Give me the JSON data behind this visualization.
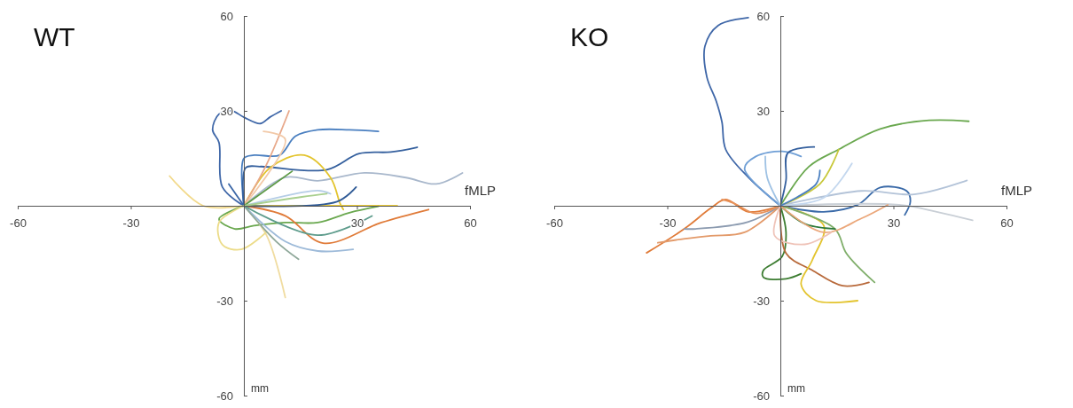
{
  "chart_data": [
    {
      "type": "line",
      "title": "WT",
      "xlabel": "fMLP",
      "annotations": [
        "mm"
      ],
      "xlim": [
        -60,
        60
      ],
      "ylim": [
        -60,
        60
      ],
      "xticks": [
        -60,
        -30,
        30,
        60
      ],
      "yticks": [
        -60,
        -30,
        30,
        60
      ],
      "series": [
        {
          "color": "#3f67a8",
          "x": [
            0,
            -5.7,
            -6.6,
            -8.3,
            -6.6,
            -3.2,
            0,
            4.4,
            6.9,
            9.9
          ],
          "values": [
            0,
            5.9,
            20,
            24,
            29,
            30,
            28,
            26,
            28,
            30
          ]
        },
        {
          "color": "#4a7fc0",
          "x": [
            0,
            0,
            2.7,
            9.5,
            13.7,
            19.6,
            28,
            35.7
          ],
          "values": [
            0,
            15,
            16,
            16,
            22,
            24,
            24,
            23.5
          ]
        },
        {
          "color": "#35609e",
          "x": [
            0,
            0.5,
            4.4,
            22,
            30.6,
            39,
            46
          ],
          "values": [
            0,
            12,
            12.4,
            11.4,
            16.5,
            17,
            18.5
          ]
        },
        {
          "color": "#a9b8cc",
          "x": [
            0,
            11,
            19.6,
            32,
            43,
            51,
            58
          ],
          "values": [
            0,
            9,
            7.9,
            10.4,
            8.9,
            6.9,
            10.4
          ]
        },
        {
          "color": "#e3c42e",
          "x": [
            0,
            6.9,
            16,
            23,
            25.5,
            26.4
          ],
          "values": [
            0,
            12,
            16,
            8.9,
            0.8,
            -1.2
          ]
        },
        {
          "color": "#f0cf3a",
          "x": [
            0,
            19.6,
            40.7
          ],
          "values": [
            0,
            0,
            0
          ]
        },
        {
          "color": "#e8a88a",
          "x": [
            0,
            6,
            12
          ],
          "values": [
            0,
            13,
            30
          ]
        },
        {
          "color": "#f2c9a8",
          "x": [
            0,
            11,
            5.2
          ],
          "values": [
            0,
            21,
            23.5
          ]
        },
        {
          "color": "#f2d98a",
          "x": [
            0,
            -10.8,
            -19.7
          ],
          "values": [
            0,
            0,
            9.4
          ]
        },
        {
          "color": "#6aa84f",
          "x": [
            0,
            -6.6,
            -2.4,
            2.7,
            11,
            19.6,
            28,
            35.7
          ],
          "values": [
            0,
            -4.2,
            -7.3,
            -6.3,
            -5.3,
            -5.3,
            -2.2,
            -0.2
          ]
        },
        {
          "color": "#e07b39",
          "x": [
            0,
            11,
            21,
            36.5,
            49
          ],
          "values": [
            0,
            -3.2,
            -11.8,
            -5.3,
            -1.2
          ]
        },
        {
          "color": "#f0dca0",
          "x": [
            0,
            6,
            11
          ],
          "values": [
            0,
            -9.3,
            -29
          ]
        },
        {
          "color": "#ecdc8a",
          "x": [
            0,
            -6.6,
            -5.7,
            -0.7,
            6
          ],
          "values": [
            0,
            -5.3,
            -12.3,
            -13.8,
            -8.3
          ]
        },
        {
          "color": "#9dbad9",
          "x": [
            0,
            11,
            19.6,
            29
          ],
          "values": [
            0,
            -11.3,
            -14.3,
            -13.8
          ]
        },
        {
          "color": "#8fa89a",
          "x": [
            0,
            8.6,
            14.5
          ],
          "values": [
            0,
            -11.3,
            -16.9
          ]
        },
        {
          "color": "#2f5a96",
          "x": [
            0,
            24.7,
            29.8
          ],
          "values": [
            0,
            1.3,
            5.9
          ]
        },
        {
          "color": "#b5cde6",
          "x": [
            0,
            19.6,
            23
          ],
          "values": [
            0,
            4.8,
            3.8
          ]
        },
        {
          "color": "#5e9c8c",
          "x": [
            0,
            19.6,
            34
          ],
          "values": [
            0,
            -9.3,
            -3.2
          ]
        },
        {
          "color": "#3a66a6",
          "x": [
            0,
            -4
          ],
          "values": [
            0,
            6.9
          ]
        },
        {
          "color": "#5d9a45",
          "x": [
            0,
            12.8
          ],
          "values": [
            0,
            10.9
          ]
        },
        {
          "color": "#a8cf8e",
          "x": [
            0,
            15.4,
            22
          ],
          "values": [
            0,
            2.8,
            3.8
          ]
        }
      ]
    },
    {
      "type": "line",
      "title": "KO",
      "xlabel": "fMLP",
      "annotations": [
        "mm"
      ],
      "xlim": [
        -60,
        60
      ],
      "ylim": [
        -60,
        60
      ],
      "xticks": [
        -60,
        -30,
        30,
        60
      ],
      "yticks": [
        -60,
        -30,
        30,
        60
      ],
      "series": [
        {
          "color": "#3f67a8",
          "x": [
            0,
            -8.5,
            -14.5,
            -15.5,
            -17,
            -19.5,
            -20,
            -16.5,
            -8.5
          ],
          "values": [
            0,
            9,
            17.8,
            26.5,
            33,
            40.7,
            50.5,
            57,
            59.5
          ]
        },
        {
          "color": "#6aa84f",
          "x": [
            0,
            7.5,
            15.5,
            26.5,
            39.5,
            50
          ],
          "values": [
            0,
            12.3,
            17.8,
            24.3,
            27,
            26.7
          ]
        },
        {
          "color": "#6f9fd6",
          "x": [
            0,
            -9.5,
            -6.5,
            0.5,
            5.5
          ],
          "values": [
            0,
            11.8,
            15.6,
            17.2,
            15.6
          ]
        },
        {
          "color": "#35609e",
          "x": [
            0,
            1.5,
            2,
            9
          ],
          "values": [
            0,
            8,
            16.7,
            18.6
          ]
        },
        {
          "color": "#3a6aa8",
          "x": [
            0,
            11.5,
            20.5,
            26.5,
            33.5,
            34.5,
            33
          ],
          "values": [
            0,
            -1.9,
            0.3,
            5.8,
            4.7,
            1.4,
            -2.9
          ]
        },
        {
          "color": "#b3c3d8",
          "x": [
            0,
            21.5,
            35.5,
            49.5
          ],
          "values": [
            0,
            4.7,
            3.6,
            8
          ]
        },
        {
          "color": "#c9cfd6",
          "x": [
            0,
            31.5,
            41.5,
            51
          ],
          "values": [
            0,
            0.3,
            -1.9,
            -4.6
          ]
        },
        {
          "color": "#e07b39",
          "x": [
            0,
            -8.5,
            -14.5,
            -18.5,
            -25.5,
            -35.5
          ],
          "values": [
            0,
            -1.9,
            2,
            -0.8,
            -7.3,
            -14.9
          ]
        },
        {
          "color": "#e39a6a",
          "x": [
            0,
            -9.5,
            -18.5,
            -26.5,
            -32.5
          ],
          "values": [
            0,
            -8.4,
            -9.5,
            -10.6,
            -11.7
          ]
        },
        {
          "color": "#8c9bb0",
          "x": [
            0,
            -8.5,
            -22.5,
            -25.5
          ],
          "values": [
            0,
            -5.1,
            -7.3,
            -7.3
          ]
        },
        {
          "color": "#e8925a",
          "x": [
            0,
            -6.5,
            -12.5,
            -15.5
          ],
          "values": [
            0,
            -2.4,
            0.9,
            2
          ]
        },
        {
          "color": "#3d7d32",
          "x": [
            0,
            1.5,
            0.5,
            -4.5,
            -4.5,
            1.5,
            5.5
          ],
          "values": [
            0,
            -8.4,
            -16,
            -20.4,
            -22.6,
            -23.1,
            -21.5
          ]
        },
        {
          "color": "#b8693a",
          "x": [
            0,
            1.5,
            8.5,
            16.5,
            23.5
          ],
          "values": [
            0,
            -15,
            -20.4,
            -25.3,
            -24.2
          ]
        },
        {
          "color": "#e3c42e",
          "x": [
            0,
            11.5,
            8.5,
            5.5,
            9.5,
            20.5
          ],
          "values": [
            0,
            -6.2,
            -17.1,
            -24.8,
            -30,
            -30
          ]
        },
        {
          "color": "#7fae6a",
          "x": [
            0,
            14.5,
            17.5,
            25
          ],
          "values": [
            0,
            -7.3,
            -15,
            -24.2
          ]
        },
        {
          "color": "#2f7a3a",
          "x": [
            0,
            6.5,
            14.5
          ],
          "values": [
            0,
            -5.7,
            -7.3
          ]
        },
        {
          "color": "#c8c83a",
          "x": [
            0,
            10.5,
            15.5
          ],
          "values": [
            0,
            6.9,
            17.8
          ]
        },
        {
          "color": "#eba77a",
          "x": [
            0,
            11.5,
            21.5,
            28.5
          ],
          "values": [
            0,
            -8.4,
            -4,
            0.3
          ]
        },
        {
          "color": "#efc3b8",
          "x": [
            0,
            -1.5,
            6.5,
            13.5
          ],
          "values": [
            0,
            -9.5,
            -12.2,
            -8.4
          ]
        },
        {
          "color": "#c3d7ee",
          "x": [
            0,
            11.5,
            19
          ],
          "values": [
            0,
            2.5,
            13.4
          ]
        },
        {
          "color": "#4a7fc0",
          "x": [
            0,
            9.5,
            10.5
          ],
          "values": [
            0,
            6.9,
            11.2
          ]
        },
        {
          "color": "#9fc2e4",
          "x": [
            0,
            -3.5,
            -4
          ],
          "values": [
            0,
            9,
            15.6
          ]
        }
      ]
    }
  ]
}
